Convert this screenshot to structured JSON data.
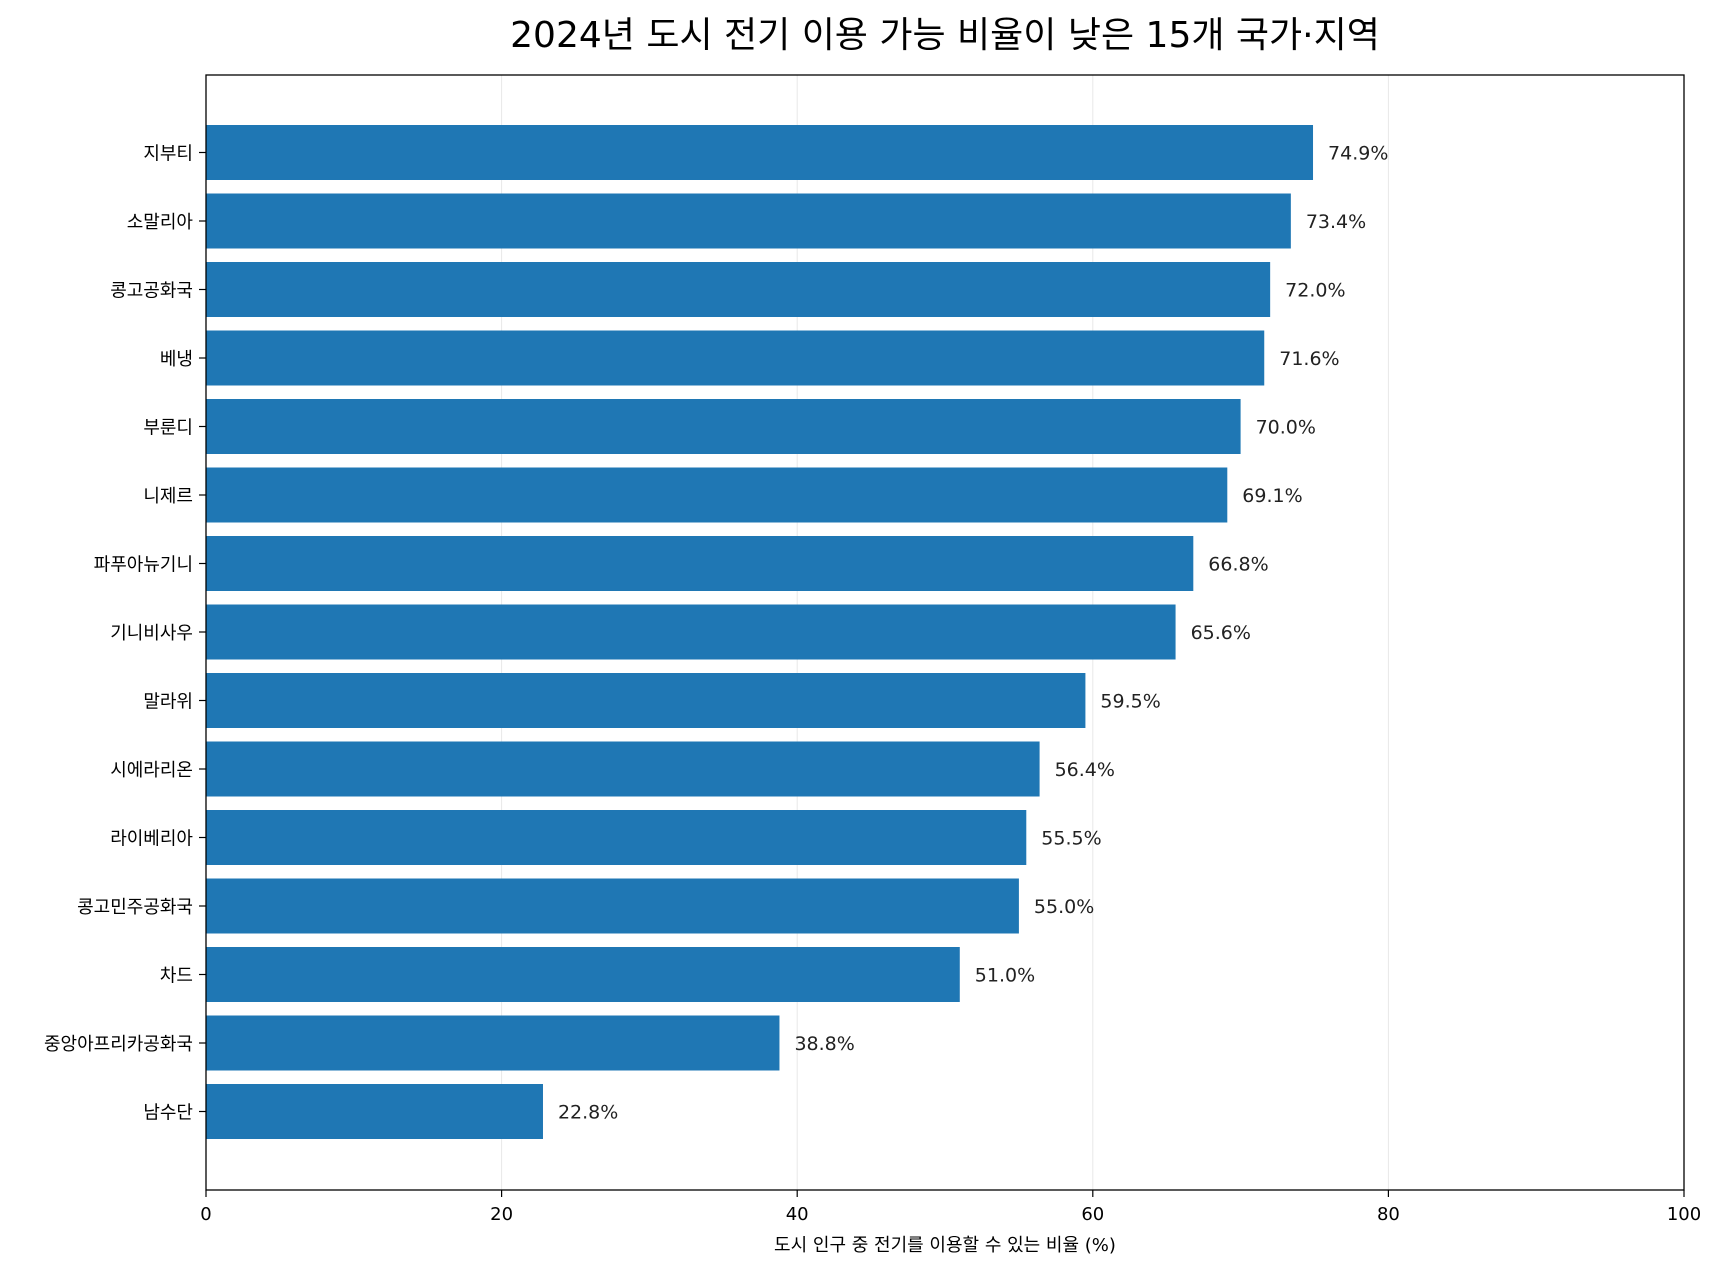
{
  "chart_data": {
    "type": "bar",
    "orientation": "horizontal",
    "title": "2024년 도시 전기 이용 가능 비율이 낮은 15개 국가·지역",
    "xlabel": "도시 인구 중 전기를 이용할 수 있는 비율 (%)",
    "ylabel": "",
    "xlim": [
      0,
      100
    ],
    "xticks": [
      0,
      20,
      40,
      60,
      80,
      100
    ],
    "grid": "vertical",
    "bar_color": "#1f77b4",
    "categories": [
      "지부티",
      "소말리아",
      "콩고공화국",
      "베냉",
      "부룬디",
      "니제르",
      "파푸아뉴기니",
      "기니비사우",
      "말라위",
      "시에라리온",
      "라이베리아",
      "콩고민주공화국",
      "차드",
      "중앙아프리카공화국",
      "남수단"
    ],
    "values": [
      74.9,
      73.4,
      72.0,
      71.6,
      70.0,
      69.1,
      66.8,
      65.6,
      59.5,
      56.4,
      55.5,
      55.0,
      51.0,
      38.8,
      22.8
    ],
    "value_labels": [
      "74.9%",
      "73.4%",
      "72.0%",
      "71.6%",
      "70.0%",
      "69.1%",
      "66.8%",
      "65.6%",
      "59.5%",
      "56.4%",
      "55.5%",
      "55.0%",
      "51.0%",
      "38.8%",
      "22.8%"
    ]
  }
}
